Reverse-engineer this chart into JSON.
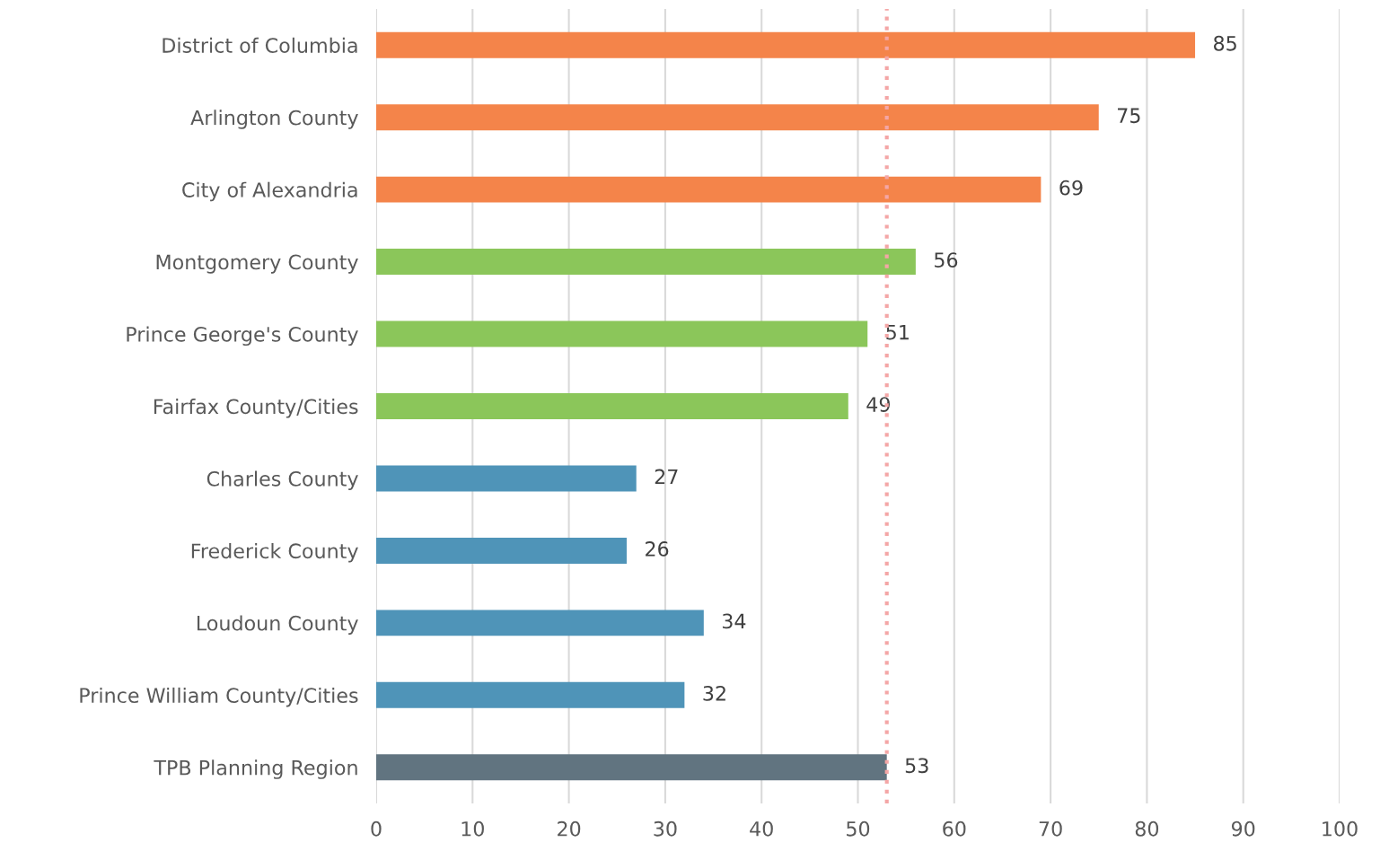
{
  "chart_data": {
    "type": "bar",
    "orientation": "horizontal",
    "categories": [
      "District of Columbia",
      "Arlington County",
      "City of Alexandria",
      "Montgomery County",
      "Prince George's County",
      "Fairfax County/Cities",
      "Charles County",
      "Frederick County",
      "Loudoun County",
      "Prince William County/Cities",
      "TPB Planning Region"
    ],
    "values": [
      85,
      75,
      69,
      56,
      51,
      49,
      27,
      26,
      34,
      32,
      53
    ],
    "colors": [
      "#f4844a",
      "#f4844a",
      "#f4844a",
      "#8bc65a",
      "#8bc65a",
      "#8bc65a",
      "#4f94b8",
      "#4f94b8",
      "#4f94b8",
      "#4f94b8",
      "#617480"
    ],
    "xlim": [
      0,
      100
    ],
    "xticks": [
      0,
      10,
      20,
      30,
      40,
      50,
      60,
      70,
      80,
      90,
      100
    ],
    "grid": "x",
    "data_labels": true,
    "legend": false,
    "ref_lines": [
      {
        "axis": "x",
        "value": 53,
        "color": "#f4a6a6",
        "line_style": "dotted"
      }
    ]
  }
}
